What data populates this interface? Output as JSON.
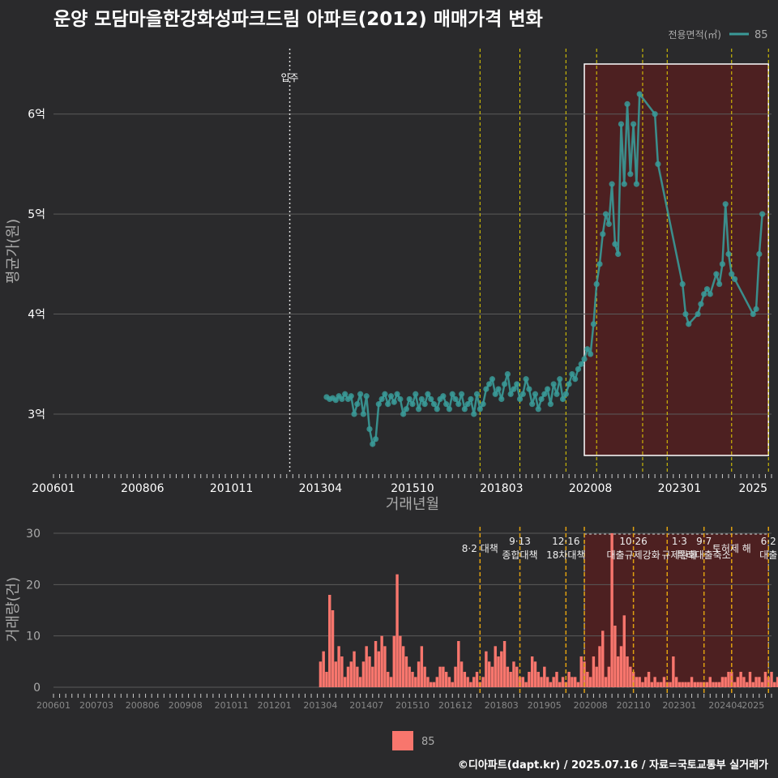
{
  "title": "운양 모담마을한강화성파크드림 아파트(2012) 매매가격 변화",
  "footer": "©디아파트(dapt.kr) / 2025.07.16 / 자료=국토교통부 실거래가",
  "colors": {
    "background": "#2a2a2c",
    "series": "#3a9a98",
    "volume_bar": "#f8766d",
    "highlight_fill": "#5a1e1e",
    "policy_line": "#e6d200",
    "policy_line_bottom": "#e0a010",
    "grid": "#5a5a5a",
    "text": "#ffffff",
    "muted_text": "#aaaaaa"
  },
  "chart_data": [
    {
      "type": "line",
      "xlabel": "거래년월",
      "ylabel": "평균가(원)",
      "x_ticks": [
        "200601",
        "200806",
        "201011",
        "201304",
        "201510",
        "201803",
        "202008",
        "202301",
        "2025"
      ],
      "y_ticks": [
        "3억",
        "4억",
        "5억",
        "6억"
      ],
      "ylim_eok": [
        2.4,
        6.8
      ],
      "legend": {
        "title": "전용면적(㎡)",
        "series": [
          "85"
        ],
        "position": "top-right"
      },
      "grid": true,
      "annotations": [
        {
          "label": "입주",
          "x": "2012.06"
        }
      ],
      "policy_lines_x": [
        "2017.08",
        "2018.09",
        "2019.12",
        "2020.10",
        "2022.01",
        "2022.09",
        "2024.06",
        "2025.06"
      ],
      "highlight": {
        "from": "2020.06",
        "to": "2025.06"
      },
      "series": [
        {
          "name": "85",
          "unit": "억",
          "points": [
            [
              "2013.06",
              3.17
            ],
            [
              "2013.07",
              3.15
            ],
            [
              "2013.08",
              3.16
            ],
            [
              "2013.09",
              3.14
            ],
            [
              "2013.10",
              3.18
            ],
            [
              "2013.11",
              3.15
            ],
            [
              "2013.12",
              3.2
            ],
            [
              "2014.01",
              3.15
            ],
            [
              "2014.02",
              3.18
            ],
            [
              "2014.03",
              3.0
            ],
            [
              "2014.04",
              3.1
            ],
            [
              "2014.05",
              3.2
            ],
            [
              "2014.06",
              3.0
            ],
            [
              "2014.07",
              3.18
            ],
            [
              "2014.08",
              2.85
            ],
            [
              "2014.09",
              2.7
            ],
            [
              "2014.10",
              2.75
            ],
            [
              "2014.11",
              3.1
            ],
            [
              "2014.12",
              3.15
            ],
            [
              "2015.01",
              3.2
            ],
            [
              "2015.02",
              3.1
            ],
            [
              "2015.03",
              3.18
            ],
            [
              "2015.04",
              3.12
            ],
            [
              "2015.05",
              3.2
            ],
            [
              "2015.06",
              3.15
            ],
            [
              "2015.07",
              3.0
            ],
            [
              "2015.08",
              3.05
            ],
            [
              "2015.09",
              3.15
            ],
            [
              "2015.10",
              3.1
            ],
            [
              "2015.11",
              3.2
            ],
            [
              "2015.12",
              3.05
            ],
            [
              "2016.01",
              3.15
            ],
            [
              "2016.02",
              3.1
            ],
            [
              "2016.03",
              3.2
            ],
            [
              "2016.04",
              3.15
            ],
            [
              "2016.05",
              3.1
            ],
            [
              "2016.06",
              3.05
            ],
            [
              "2016.07",
              3.15
            ],
            [
              "2016.08",
              3.18
            ],
            [
              "2016.09",
              3.1
            ],
            [
              "2016.10",
              3.05
            ],
            [
              "2016.11",
              3.2
            ],
            [
              "2016.12",
              3.15
            ],
            [
              "2017.01",
              3.1
            ],
            [
              "2017.02",
              3.2
            ],
            [
              "2017.03",
              3.05
            ],
            [
              "2017.04",
              3.1
            ],
            [
              "2017.05",
              3.15
            ],
            [
              "2017.06",
              3.0
            ],
            [
              "2017.07",
              3.2
            ],
            [
              "2017.08",
              3.05
            ],
            [
              "2017.09",
              3.1
            ],
            [
              "2017.10",
              3.25
            ],
            [
              "2017.11",
              3.3
            ],
            [
              "2017.12",
              3.35
            ],
            [
              "2018.01",
              3.2
            ],
            [
              "2018.02",
              3.25
            ],
            [
              "2018.03",
              3.15
            ],
            [
              "2018.04",
              3.3
            ],
            [
              "2018.05",
              3.4
            ],
            [
              "2018.06",
              3.2
            ],
            [
              "2018.07",
              3.25
            ],
            [
              "2018.08",
              3.3
            ],
            [
              "2018.09",
              3.15
            ],
            [
              "2018.10",
              3.2
            ],
            [
              "2018.11",
              3.35
            ],
            [
              "2018.12",
              3.25
            ],
            [
              "2019.01",
              3.1
            ],
            [
              "2019.02",
              3.2
            ],
            [
              "2019.03",
              3.05
            ],
            [
              "2019.04",
              3.15
            ],
            [
              "2019.05",
              3.2
            ],
            [
              "2019.06",
              3.25
            ],
            [
              "2019.07",
              3.1
            ],
            [
              "2019.08",
              3.3
            ],
            [
              "2019.09",
              3.2
            ],
            [
              "2019.10",
              3.35
            ],
            [
              "2019.11",
              3.15
            ],
            [
              "2019.12",
              3.2
            ],
            [
              "2020.01",
              3.3
            ],
            [
              "2020.02",
              3.4
            ],
            [
              "2020.03",
              3.35
            ],
            [
              "2020.04",
              3.45
            ],
            [
              "2020.05",
              3.5
            ],
            [
              "2020.06",
              3.55
            ],
            [
              "2020.07",
              3.65
            ],
            [
              "2020.08",
              3.6
            ],
            [
              "2020.09",
              3.9
            ],
            [
              "2020.10",
              4.3
            ],
            [
              "2020.11",
              4.5
            ],
            [
              "2020.12",
              4.8
            ],
            [
              "2021.01",
              5.0
            ],
            [
              "2021.02",
              4.9
            ],
            [
              "2021.03",
              5.3
            ],
            [
              "2021.04",
              4.7
            ],
            [
              "2021.05",
              4.6
            ],
            [
              "2021.06",
              5.9
            ],
            [
              "2021.07",
              5.3
            ],
            [
              "2021.08",
              6.1
            ],
            [
              "2021.09",
              5.4
            ],
            [
              "2021.10",
              5.9
            ],
            [
              "2021.11",
              5.3
            ],
            [
              "2021.12",
              6.2
            ],
            [
              "2022.05",
              6.0
            ],
            [
              "2022.06",
              5.5
            ],
            [
              "2023.02",
              4.3
            ],
            [
              "2023.03",
              4.0
            ],
            [
              "2023.04",
              3.9
            ],
            [
              "2023.07",
              4.0
            ],
            [
              "2023.08",
              4.1
            ],
            [
              "2023.09",
              4.2
            ],
            [
              "2023.10",
              4.25
            ],
            [
              "2023.11",
              4.2
            ],
            [
              "2024.01",
              4.4
            ],
            [
              "2024.02",
              4.3
            ],
            [
              "2024.03",
              4.5
            ],
            [
              "2024.04",
              5.1
            ],
            [
              "2024.05",
              4.6
            ],
            [
              "2024.06",
              4.4
            ],
            [
              "2024.07",
              4.35
            ],
            [
              "2025.01",
              4.0
            ],
            [
              "2025.02",
              4.05
            ],
            [
              "2025.03",
              4.6
            ],
            [
              "2025.04",
              5.0
            ]
          ]
        }
      ]
    },
    {
      "type": "bar",
      "xlabel": "",
      "ylabel": "거래량(건)",
      "x_ticks": [
        "200601",
        "200703",
        "200806",
        "200908",
        "201011",
        "201201",
        "201304",
        "201407",
        "201510",
        "201612",
        "201803",
        "201905",
        "202008",
        "202110",
        "202301",
        "202404",
        "2025"
      ],
      "y_ticks": [
        "0",
        "10",
        "20",
        "30"
      ],
      "ylim": [
        0,
        30
      ],
      "grid": true,
      "policy_labels": [
        {
          "x": "2017.08",
          "lines": [
            "8·2 대책"
          ]
        },
        {
          "x": "2018.09",
          "lines": [
            "9·13",
            "종합대책"
          ]
        },
        {
          "x": "2019.12",
          "lines": [
            "12·16",
            "18차대책"
          ]
        },
        {
          "x": "2021.10",
          "lines": [
            "10·26",
            "대출규제강화"
          ]
        },
        {
          "x": "2023.01",
          "lines": [
            "1·3",
            "규제완화"
          ]
        },
        {
          "x": "2023.09",
          "lines": [
            "9·7",
            "특례대출축소"
          ]
        },
        {
          "x": "2024.06",
          "lines": [
            "토허제 해"
          ]
        },
        {
          "x": "2025.06",
          "lines": [
            "6·2",
            "대출"
          ]
        }
      ],
      "policy_lines_x": [
        "2017.08",
        "2018.09",
        "2019.12",
        "2020.06",
        "2021.10",
        "2022.09",
        "2023.09",
        "2024.06",
        "2025.06"
      ],
      "highlight": {
        "from": "2020.06",
        "to": "2025.06"
      },
      "legend": {
        "series": [
          "85"
        ],
        "position": "bottom"
      },
      "start": "2013.04",
      "counts": [
        5,
        7,
        3,
        18,
        15,
        5,
        8,
        6,
        2,
        4,
        5,
        7,
        4,
        2,
        5,
        8,
        6,
        4,
        9,
        7,
        10,
        8,
        3,
        2,
        10,
        22,
        10,
        8,
        6,
        4,
        3,
        2,
        5,
        8,
        4,
        2,
        1,
        1,
        2,
        4,
        4,
        3,
        2,
        1,
        4,
        9,
        5,
        3,
        2,
        1,
        2,
        3,
        1,
        2,
        7,
        5,
        4,
        8,
        6,
        7,
        9,
        4,
        3,
        5,
        4,
        2,
        2,
        1,
        3,
        6,
        5,
        3,
        2,
        4,
        2,
        1,
        2,
        3,
        1,
        2,
        1,
        3,
        2,
        2,
        1,
        6,
        5,
        3,
        2,
        6,
        4,
        8,
        11,
        2,
        4,
        30,
        12,
        6,
        8,
        14,
        6,
        4,
        3,
        2,
        2,
        1,
        2,
        3,
        1,
        2,
        1,
        1,
        2,
        1,
        1,
        6,
        2,
        1,
        1,
        1,
        1,
        2,
        1,
        1,
        1,
        1,
        1,
        2,
        1,
        1,
        1,
        2,
        2,
        3,
        3,
        1,
        2,
        3,
        2,
        1,
        3,
        1,
        2,
        2,
        1,
        3,
        2,
        3,
        1,
        2,
        2,
        1,
        1,
        2,
        1,
        1,
        2,
        3,
        1,
        2,
        2,
        1,
        1,
        2,
        1
      ]
    }
  ]
}
